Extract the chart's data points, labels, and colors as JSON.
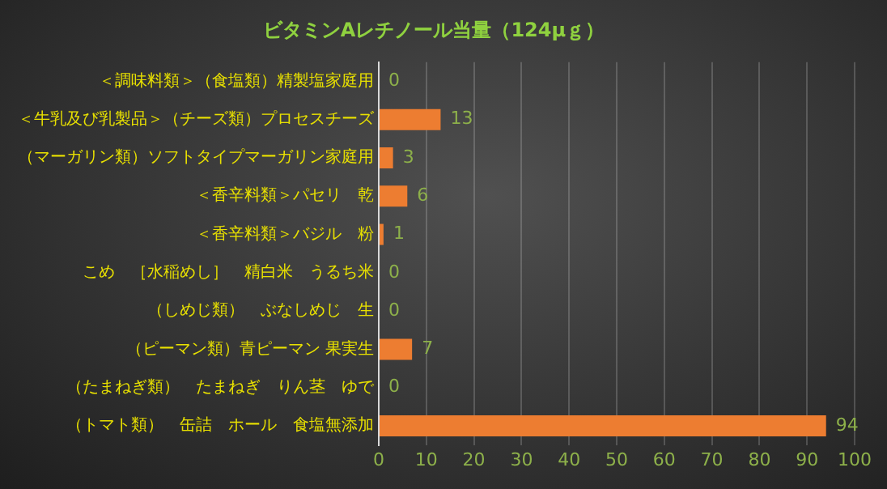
{
  "chart_data": {
    "type": "bar",
    "orientation": "horizontal",
    "title": "ビタミンAレチノール当量（124μｇ）",
    "categories": [
      "＜調味料類＞（食塩類）精製塩家庭用",
      "＜牛乳及び乳製品＞（チーズ類）プロセスチーズ",
      "（マーガリン類）ソフトタイプマーガリン家庭用",
      "＜香辛料類＞パセリ　乾",
      "＜香辛料類＞バジル　粉",
      "こめ　［水稲めし］　精白米　うるち米",
      "（しめじ類）　ぶなしめじ　生",
      "（ピーマン類）青ピーマン 果実生",
      "（たまねぎ類）　たまねぎ　りん茎　ゆで",
      "（トマト類）　缶詰　ホール　食塩無添加"
    ],
    "values": [
      0,
      13,
      3,
      6,
      1,
      0,
      0,
      7,
      0,
      94
    ],
    "color": "#ed7d31",
    "xlim": [
      0,
      100
    ],
    "xticks": [
      0,
      10,
      20,
      30,
      40,
      50,
      60,
      70,
      80,
      90,
      100
    ],
    "grid": "x",
    "data_labels": true,
    "legend": false
  }
}
